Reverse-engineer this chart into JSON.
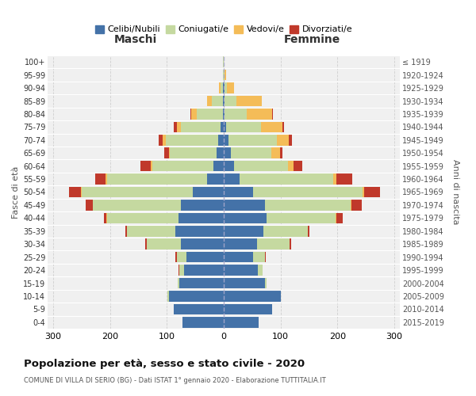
{
  "age_groups": [
    "0-4",
    "5-9",
    "10-14",
    "15-19",
    "20-24",
    "25-29",
    "30-34",
    "35-39",
    "40-44",
    "45-49",
    "50-54",
    "55-59",
    "60-64",
    "65-69",
    "70-74",
    "75-79",
    "80-84",
    "85-89",
    "90-94",
    "95-99",
    "100+"
  ],
  "birth_years": [
    "2015-2019",
    "2010-2014",
    "2005-2009",
    "2000-2004",
    "1995-1999",
    "1990-1994",
    "1985-1989",
    "1980-1984",
    "1975-1979",
    "1970-1974",
    "1965-1969",
    "1960-1964",
    "1955-1959",
    "1950-1954",
    "1945-1949",
    "1940-1944",
    "1935-1939",
    "1930-1934",
    "1925-1929",
    "1920-1924",
    "≤ 1919"
  ],
  "colors": {
    "celibi": "#4472a8",
    "coniugati": "#c5d9a0",
    "vedovi": "#f4bc58",
    "divorziati": "#c0392b"
  },
  "males_celibi": [
    72,
    88,
    97,
    78,
    70,
    65,
    75,
    85,
    80,
    75,
    55,
    30,
    18,
    13,
    10,
    5,
    2,
    1,
    1,
    0,
    0
  ],
  "males_coniugati": [
    0,
    0,
    2,
    3,
    8,
    18,
    60,
    85,
    125,
    155,
    195,
    175,
    108,
    82,
    92,
    70,
    45,
    20,
    5,
    2,
    1
  ],
  "males_vedovi": [
    0,
    0,
    0,
    0,
    0,
    0,
    0,
    0,
    1,
    1,
    2,
    3,
    2,
    2,
    5,
    8,
    10,
    8,
    2,
    0,
    0
  ],
  "males_divorziati": [
    0,
    0,
    0,
    0,
    1,
    2,
    3,
    3,
    5,
    12,
    20,
    18,
    18,
    8,
    8,
    5,
    2,
    0,
    0,
    0,
    0
  ],
  "females_nubili": [
    62,
    85,
    100,
    72,
    60,
    52,
    58,
    70,
    75,
    72,
    52,
    28,
    18,
    12,
    8,
    4,
    2,
    2,
    1,
    0,
    0
  ],
  "females_coniugate": [
    0,
    0,
    1,
    3,
    8,
    20,
    58,
    78,
    122,
    152,
    192,
    165,
    95,
    72,
    85,
    62,
    38,
    20,
    5,
    2,
    0
  ],
  "females_vedove": [
    0,
    0,
    0,
    0,
    0,
    0,
    0,
    0,
    1,
    1,
    3,
    5,
    10,
    15,
    22,
    38,
    45,
    45,
    12,
    2,
    0
  ],
  "females_divorziate": [
    0,
    0,
    0,
    0,
    1,
    2,
    3,
    3,
    12,
    18,
    28,
    28,
    15,
    5,
    5,
    2,
    2,
    0,
    0,
    0,
    0
  ],
  "title": "Popolazione per età, sesso e stato civile - 2020",
  "subtitle": "COMUNE DI VILLA DI SERIO (BG) - Dati ISTAT 1° gennaio 2020 - Elaborazione TUTTITALIA.IT",
  "label_maschi": "Maschi",
  "label_femmine": "Femmine",
  "ylabel_left": "Fasce di età",
  "ylabel_right": "Anni di nascita",
  "legend_labels": [
    "Celibi/Nubili",
    "Coniugati/e",
    "Vedovi/e",
    "Divorziati/e"
  ],
  "xlim": 310,
  "fig_bg": "#ffffff",
  "ax_bg": "#f0f0f0"
}
